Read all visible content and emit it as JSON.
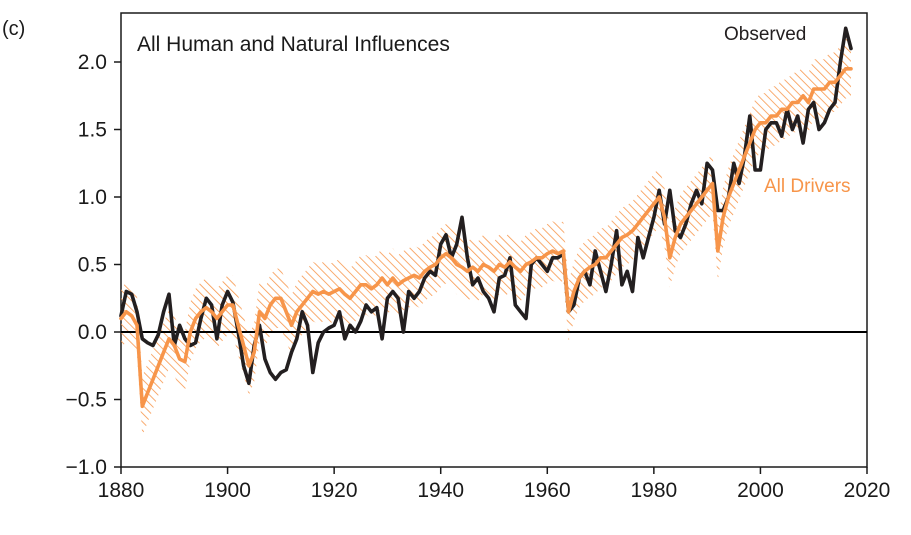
{
  "chart_data": {
    "type": "line",
    "panel_label": "(c)",
    "title": "All Human and Natural Influences",
    "xlabel": "",
    "ylabel": "",
    "xlim": [
      1880,
      2020
    ],
    "ylim": [
      -1.0,
      2.3
    ],
    "x_ticks": [
      1880,
      1900,
      1920,
      1940,
      1960,
      1980,
      2000,
      2020
    ],
    "y_ticks": [
      -1.0,
      -0.5,
      0.0,
      0.5,
      1.0,
      1.5,
      2.0
    ],
    "y_tick_labels": [
      "−1.0",
      "−0.5",
      "0.0",
      "0.5",
      "1.0",
      "1.5",
      "2.0"
    ],
    "grid": false,
    "zero_line": true,
    "colors": {
      "observed": "#231f20",
      "all_drivers": "#f7954a",
      "uncertainty_hatch": "#f7954a",
      "axis": "#1a1a1a"
    },
    "series": [
      {
        "name": "Observed",
        "x": [
          1880,
          1881,
          1882,
          1883,
          1884,
          1885,
          1886,
          1887,
          1888,
          1889,
          1890,
          1891,
          1892,
          1893,
          1894,
          1895,
          1896,
          1897,
          1898,
          1899,
          1900,
          1901,
          1902,
          1903,
          1904,
          1905,
          1906,
          1907,
          1908,
          1909,
          1910,
          1911,
          1912,
          1913,
          1914,
          1915,
          1916,
          1917,
          1918,
          1919,
          1920,
          1921,
          1922,
          1923,
          1924,
          1925,
          1926,
          1927,
          1928,
          1929,
          1930,
          1931,
          1932,
          1933,
          1934,
          1935,
          1936,
          1937,
          1938,
          1939,
          1940,
          1941,
          1942,
          1943,
          1944,
          1945,
          1946,
          1947,
          1948,
          1949,
          1950,
          1951,
          1952,
          1953,
          1954,
          1955,
          1956,
          1957,
          1958,
          1959,
          1960,
          1961,
          1962,
          1963,
          1964,
          1965,
          1966,
          1967,
          1968,
          1969,
          1970,
          1971,
          1972,
          1973,
          1974,
          1975,
          1976,
          1977,
          1978,
          1979,
          1980,
          1981,
          1982,
          1983,
          1984,
          1985,
          1986,
          1987,
          1988,
          1989,
          1990,
          1991,
          1992,
          1993,
          1994,
          1995,
          1996,
          1997,
          1998,
          1999,
          2000,
          2001,
          2002,
          2003,
          2004,
          2005,
          2006,
          2007,
          2008,
          2009,
          2010,
          2011,
          2012,
          2013,
          2014,
          2015,
          2016,
          2017
        ],
        "values": [
          0.12,
          0.3,
          0.28,
          0.15,
          -0.05,
          -0.08,
          -0.1,
          -0.02,
          0.15,
          0.28,
          -0.1,
          0.05,
          -0.05,
          -0.1,
          -0.08,
          0.1,
          0.25,
          0.2,
          -0.05,
          0.2,
          0.3,
          0.22,
          0.0,
          -0.25,
          -0.38,
          -0.1,
          0.05,
          -0.2,
          -0.3,
          -0.35,
          -0.3,
          -0.28,
          -0.15,
          -0.05,
          0.15,
          0.05,
          -0.3,
          -0.08,
          0.0,
          0.03,
          0.05,
          0.15,
          -0.05,
          0.05,
          0.0,
          0.08,
          0.2,
          0.15,
          0.18,
          -0.05,
          0.25,
          0.3,
          0.25,
          0.0,
          0.3,
          0.25,
          0.3,
          0.4,
          0.45,
          0.42,
          0.65,
          0.72,
          0.55,
          0.65,
          0.85,
          0.55,
          0.35,
          0.4,
          0.3,
          0.25,
          0.15,
          0.4,
          0.42,
          0.55,
          0.2,
          0.15,
          0.1,
          0.5,
          0.55,
          0.5,
          0.45,
          0.55,
          0.55,
          0.58,
          0.15,
          0.2,
          0.4,
          0.45,
          0.35,
          0.6,
          0.45,
          0.3,
          0.5,
          0.75,
          0.35,
          0.45,
          0.3,
          0.7,
          0.55,
          0.7,
          0.85,
          1.05,
          0.8,
          1.05,
          0.75,
          0.7,
          0.8,
          0.95,
          1.05,
          0.95,
          1.25,
          1.2,
          0.9,
          0.9,
          1.0,
          1.25,
          1.1,
          1.3,
          1.6,
          1.2,
          1.2,
          1.5,
          1.55,
          1.55,
          1.45,
          1.65,
          1.5,
          1.6,
          1.4,
          1.65,
          1.7,
          1.5,
          1.55,
          1.65,
          1.7,
          2.0,
          2.25,
          2.1
        ]
      },
      {
        "name": "All Drivers",
        "x": [
          1880,
          1881,
          1882,
          1883,
          1884,
          1885,
          1886,
          1887,
          1888,
          1889,
          1890,
          1891,
          1892,
          1893,
          1894,
          1895,
          1896,
          1897,
          1898,
          1899,
          1900,
          1901,
          1902,
          1903,
          1904,
          1905,
          1906,
          1907,
          1908,
          1909,
          1910,
          1911,
          1912,
          1913,
          1914,
          1915,
          1916,
          1917,
          1918,
          1919,
          1920,
          1921,
          1922,
          1923,
          1924,
          1925,
          1926,
          1927,
          1928,
          1929,
          1930,
          1931,
          1932,
          1933,
          1934,
          1935,
          1936,
          1937,
          1938,
          1939,
          1940,
          1941,
          1942,
          1943,
          1944,
          1945,
          1946,
          1947,
          1948,
          1949,
          1950,
          1951,
          1952,
          1953,
          1954,
          1955,
          1956,
          1957,
          1958,
          1959,
          1960,
          1961,
          1962,
          1963,
          1964,
          1965,
          1966,
          1967,
          1968,
          1969,
          1970,
          1971,
          1972,
          1973,
          1974,
          1975,
          1976,
          1977,
          1978,
          1979,
          1980,
          1981,
          1982,
          1983,
          1984,
          1985,
          1986,
          1987,
          1988,
          1989,
          1990,
          1991,
          1992,
          1993,
          1994,
          1995,
          1996,
          1997,
          1998,
          1999,
          2000,
          2001,
          2002,
          2003,
          2004,
          2005,
          2006,
          2007,
          2008,
          2009,
          2010,
          2011,
          2012,
          2013,
          2014,
          2015,
          2016,
          2017
        ],
        "values": [
          0.1,
          0.15,
          0.12,
          0.05,
          -0.55,
          -0.45,
          -0.35,
          -0.25,
          -0.15,
          -0.05,
          -0.1,
          -0.2,
          -0.22,
          0.0,
          0.1,
          0.15,
          0.18,
          0.15,
          0.1,
          0.15,
          0.2,
          0.2,
          0.05,
          -0.1,
          -0.25,
          -0.15,
          0.15,
          0.1,
          0.2,
          0.25,
          0.25,
          0.15,
          0.05,
          0.15,
          0.2,
          0.25,
          0.3,
          0.28,
          0.3,
          0.28,
          0.3,
          0.32,
          0.28,
          0.25,
          0.3,
          0.35,
          0.35,
          0.32,
          0.35,
          0.4,
          0.35,
          0.4,
          0.35,
          0.38,
          0.4,
          0.42,
          0.4,
          0.45,
          0.48,
          0.5,
          0.55,
          0.58,
          0.55,
          0.5,
          0.48,
          0.45,
          0.48,
          0.45,
          0.5,
          0.48,
          0.45,
          0.5,
          0.48,
          0.52,
          0.48,
          0.45,
          0.5,
          0.52,
          0.55,
          0.55,
          0.58,
          0.6,
          0.58,
          0.6,
          0.15,
          0.3,
          0.4,
          0.45,
          0.48,
          0.5,
          0.55,
          0.55,
          0.6,
          0.65,
          0.7,
          0.72,
          0.75,
          0.8,
          0.85,
          0.9,
          0.95,
          1.0,
          0.85,
          0.55,
          0.7,
          0.8,
          0.85,
          0.9,
          0.95,
          1.0,
          1.05,
          1.1,
          0.6,
          0.85,
          1.0,
          1.1,
          1.2,
          1.3,
          1.4,
          1.5,
          1.55,
          1.55,
          1.6,
          1.6,
          1.65,
          1.65,
          1.7,
          1.7,
          1.75,
          1.7,
          1.8,
          1.8,
          1.8,
          1.85,
          1.85,
          1.9,
          1.95,
          1.95
        ]
      }
    ],
    "uncertainty_band": {
      "series": "All Drivers",
      "half_width": 0.22
    },
    "labels": {
      "observed": "Observed",
      "all_drivers": "All Drivers"
    }
  }
}
